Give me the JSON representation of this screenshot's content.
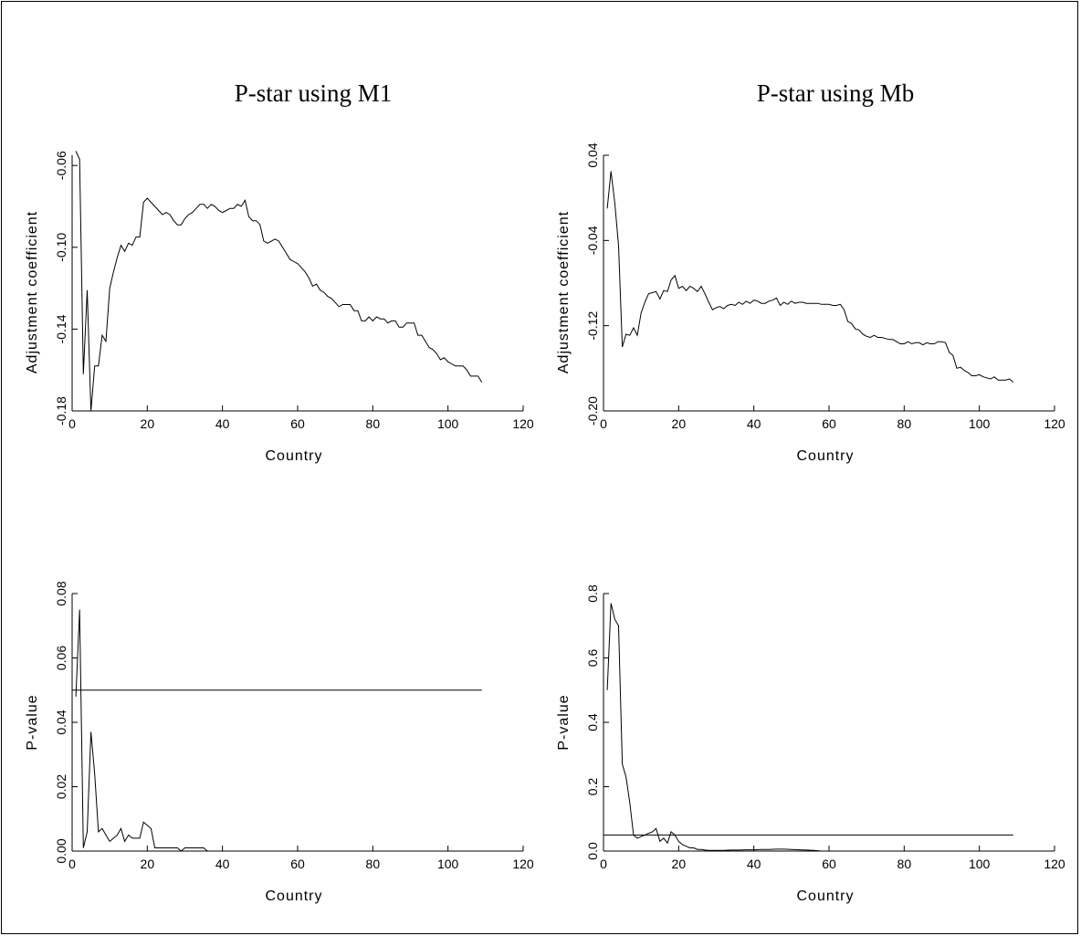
{
  "titles": {
    "left": "P-star using M1",
    "right": "P-star using Mb"
  },
  "chart_data": [
    {
      "id": "m1-adjustment",
      "type": "line",
      "title": "",
      "xlabel": "Country",
      "ylabel": "Adjustment coefficient",
      "xlim": [
        0,
        120
      ],
      "ylim": [
        -0.18,
        -0.055
      ],
      "xticks": [
        0,
        20,
        40,
        60,
        80,
        100,
        120
      ],
      "xtick_labels": [
        "0",
        "20",
        "40",
        "60",
        "80",
        "100",
        "120"
      ],
      "yticks": [
        -0.18,
        -0.14,
        -0.1,
        -0.06
      ],
      "ytick_labels": [
        "-0.18",
        "-0.14",
        "-0.10",
        "-0.06"
      ],
      "series": [
        {
          "x": [
            1,
            2,
            3,
            4,
            5,
            6,
            7,
            8,
            9,
            10,
            11,
            12,
            13,
            14,
            15,
            16,
            17,
            18,
            19,
            20,
            21,
            22,
            23,
            24,
            25,
            26,
            27,
            28,
            29,
            30,
            31,
            32,
            33,
            34,
            35,
            36,
            37,
            38,
            39,
            40,
            41,
            42,
            43,
            44,
            45,
            46,
            47,
            48,
            49,
            50,
            51,
            52,
            53,
            54,
            55,
            56,
            57,
            58,
            59,
            60,
            61,
            62,
            63,
            64,
            65,
            66,
            67,
            68,
            69,
            70,
            71,
            72,
            73,
            74,
            75,
            76,
            77,
            78,
            79,
            80,
            81,
            82,
            83,
            84,
            85,
            86,
            87,
            88,
            89,
            90,
            91,
            92,
            93,
            94,
            95,
            96,
            97,
            98,
            99,
            100,
            101,
            102,
            103,
            104,
            105,
            106,
            107,
            108,
            109
          ],
          "values": [
            -0.053,
            -0.057,
            -0.162,
            -0.121,
            -0.182,
            -0.158,
            -0.158,
            -0.143,
            -0.146,
            -0.12,
            -0.112,
            -0.105,
            -0.099,
            -0.102,
            -0.098,
            -0.099,
            -0.095,
            -0.095,
            -0.078,
            -0.076,
            -0.078,
            -0.08,
            -0.082,
            -0.084,
            -0.083,
            -0.084,
            -0.087,
            -0.089,
            -0.089,
            -0.086,
            -0.084,
            -0.083,
            -0.081,
            -0.079,
            -0.079,
            -0.081,
            -0.079,
            -0.08,
            -0.082,
            -0.083,
            -0.082,
            -0.081,
            -0.081,
            -0.079,
            -0.08,
            -0.077,
            -0.085,
            -0.087,
            -0.087,
            -0.089,
            -0.097,
            -0.098,
            -0.097,
            -0.096,
            -0.097,
            -0.1,
            -0.103,
            -0.106,
            -0.107,
            -0.108,
            -0.11,
            -0.112,
            -0.115,
            -0.119,
            -0.118,
            -0.121,
            -0.122,
            -0.124,
            -0.125,
            -0.127,
            -0.129,
            -0.128,
            -0.128,
            -0.128,
            -0.131,
            -0.131,
            -0.136,
            -0.136,
            -0.134,
            -0.136,
            -0.134,
            -0.135,
            -0.135,
            -0.137,
            -0.136,
            -0.136,
            -0.139,
            -0.139,
            -0.137,
            -0.137,
            -0.137,
            -0.143,
            -0.143,
            -0.146,
            -0.149,
            -0.15,
            -0.152,
            -0.155,
            -0.154,
            -0.156,
            -0.157,
            -0.158,
            -0.158,
            -0.158,
            -0.16,
            -0.163,
            -0.163,
            -0.163,
            -0.166
          ]
        }
      ]
    },
    {
      "id": "mb-adjustment",
      "type": "line",
      "title": "",
      "xlabel": "Country",
      "ylabel": "Adjustment coefficient",
      "xlim": [
        0,
        120
      ],
      "ylim": [
        -0.2,
        0.04
      ],
      "xticks": [
        0,
        20,
        40,
        60,
        80,
        100,
        120
      ],
      "xtick_labels": [
        "0",
        "20",
        "40",
        "60",
        "80",
        "100",
        "120"
      ],
      "yticks": [
        -0.2,
        -0.12,
        -0.04,
        0.04
      ],
      "ytick_labels": [
        "-0.20",
        "-0.12",
        "-0.04",
        "0.04"
      ],
      "series": [
        {
          "x": [
            1,
            2,
            3,
            4,
            5,
            6,
            7,
            8,
            9,
            10,
            11,
            12,
            13,
            14,
            15,
            16,
            17,
            18,
            19,
            20,
            21,
            22,
            23,
            24,
            25,
            26,
            27,
            28,
            29,
            30,
            31,
            32,
            33,
            34,
            35,
            36,
            37,
            38,
            39,
            40,
            41,
            42,
            43,
            44,
            45,
            46,
            47,
            48,
            49,
            50,
            51,
            52,
            53,
            54,
            55,
            56,
            57,
            58,
            59,
            60,
            61,
            62,
            63,
            64,
            65,
            66,
            67,
            68,
            69,
            70,
            71,
            72,
            73,
            74,
            75,
            76,
            77,
            78,
            79,
            80,
            81,
            82,
            83,
            84,
            85,
            86,
            87,
            88,
            89,
            90,
            91,
            92,
            93,
            94,
            95,
            96,
            97,
            98,
            99,
            100,
            101,
            102,
            103,
            104,
            105,
            106,
            107,
            108,
            109
          ],
          "values": [
            -0.01,
            0.025,
            -0.005,
            -0.045,
            -0.14,
            -0.128,
            -0.129,
            -0.122,
            -0.129,
            -0.108,
            -0.098,
            -0.09,
            -0.089,
            -0.088,
            -0.095,
            -0.087,
            -0.088,
            -0.077,
            -0.073,
            -0.085,
            -0.083,
            -0.087,
            -0.083,
            -0.085,
            -0.088,
            -0.083,
            -0.09,
            -0.098,
            -0.105,
            -0.103,
            -0.102,
            -0.104,
            -0.101,
            -0.1,
            -0.101,
            -0.098,
            -0.1,
            -0.097,
            -0.099,
            -0.096,
            -0.097,
            -0.099,
            -0.099,
            -0.097,
            -0.096,
            -0.094,
            -0.101,
            -0.098,
            -0.1,
            -0.097,
            -0.099,
            -0.098,
            -0.098,
            -0.099,
            -0.099,
            -0.099,
            -0.099,
            -0.1,
            -0.1,
            -0.1,
            -0.101,
            -0.101,
            -0.1,
            -0.105,
            -0.116,
            -0.118,
            -0.123,
            -0.124,
            -0.128,
            -0.13,
            -0.131,
            -0.129,
            -0.131,
            -0.131,
            -0.132,
            -0.133,
            -0.133,
            -0.135,
            -0.137,
            -0.137,
            -0.135,
            -0.137,
            -0.136,
            -0.136,
            -0.138,
            -0.136,
            -0.137,
            -0.137,
            -0.135,
            -0.135,
            -0.136,
            -0.145,
            -0.148,
            -0.16,
            -0.159,
            -0.162,
            -0.164,
            -0.167,
            -0.167,
            -0.166,
            -0.168,
            -0.169,
            -0.17,
            -0.168,
            -0.171,
            -0.171,
            -0.171,
            -0.17,
            -0.173
          ]
        }
      ]
    },
    {
      "id": "m1-pvalue",
      "type": "line",
      "title": "",
      "xlabel": "Country",
      "ylabel": "P-value",
      "xlim": [
        0,
        120
      ],
      "ylim": [
        0,
        0.08
      ],
      "xticks": [
        0,
        20,
        40,
        60,
        80,
        100,
        120
      ],
      "xtick_labels": [
        "0",
        "20",
        "40",
        "60",
        "80",
        "100",
        "120"
      ],
      "yticks": [
        0,
        0.02,
        0.04,
        0.06,
        0.08
      ],
      "ytick_labels": [
        "0.00",
        "0.02",
        "0.04",
        "0.06",
        "0.08"
      ],
      "reference_line": {
        "y": 0.05,
        "x": [
          0,
          109
        ]
      },
      "series": [
        {
          "x": [
            1,
            2,
            3,
            4,
            5,
            6,
            7,
            8,
            9,
            10,
            11,
            12,
            13,
            14,
            15,
            16,
            17,
            18,
            19,
            20,
            21,
            22,
            23,
            24,
            25,
            26,
            27,
            28,
            29,
            30,
            31,
            32,
            33,
            34,
            35,
            36
          ],
          "values": [
            0.048,
            0.075,
            0.001,
            0.006,
            0.037,
            0.024,
            0.006,
            0.007,
            0.005,
            0.003,
            0.004,
            0.005,
            0.007,
            0.003,
            0.005,
            0.004,
            0.004,
            0.004,
            0.009,
            0.008,
            0.007,
            0.001,
            0.001,
            0.001,
            0.001,
            0.001,
            0.001,
            0.001,
            0.0,
            0.001,
            0.001,
            0.001,
            0.001,
            0.001,
            0.001,
            0.0
          ]
        }
      ]
    },
    {
      "id": "mb-pvalue",
      "type": "line",
      "title": "",
      "xlabel": "Country",
      "ylabel": "P-value",
      "xlim": [
        0,
        120
      ],
      "ylim": [
        0,
        0.8
      ],
      "xticks": [
        0,
        20,
        40,
        60,
        80,
        100,
        120
      ],
      "xtick_labels": [
        "0",
        "20",
        "40",
        "60",
        "80",
        "100",
        "120"
      ],
      "yticks": [
        0,
        0.2,
        0.4,
        0.6,
        0.8
      ],
      "ytick_labels": [
        "0.0",
        "0.2",
        "0.4",
        "0.6",
        "0.8"
      ],
      "reference_line": {
        "y": 0.05,
        "x": [
          0,
          109
        ]
      },
      "series": [
        {
          "x": [
            1,
            2,
            3,
            4,
            5,
            6,
            7,
            8,
            9,
            10,
            11,
            12,
            13,
            14,
            15,
            16,
            17,
            18,
            19,
            20,
            21,
            22,
            23,
            24,
            25,
            26,
            27,
            28,
            29,
            30,
            32,
            34,
            36,
            38,
            40,
            42,
            44,
            46,
            48,
            50,
            52,
            54,
            56,
            58
          ],
          "values": [
            0.5,
            0.77,
            0.72,
            0.7,
            0.27,
            0.23,
            0.15,
            0.05,
            0.04,
            0.045,
            0.05,
            0.055,
            0.06,
            0.07,
            0.03,
            0.04,
            0.025,
            0.06,
            0.05,
            0.03,
            0.02,
            0.015,
            0.01,
            0.01,
            0.005,
            0.005,
            0.003,
            0.002,
            0.002,
            0.002,
            0.002,
            0.003,
            0.003,
            0.004,
            0.004,
            0.005,
            0.005,
            0.006,
            0.006,
            0.005,
            0.004,
            0.003,
            0.002,
            0.0
          ]
        }
      ]
    }
  ]
}
